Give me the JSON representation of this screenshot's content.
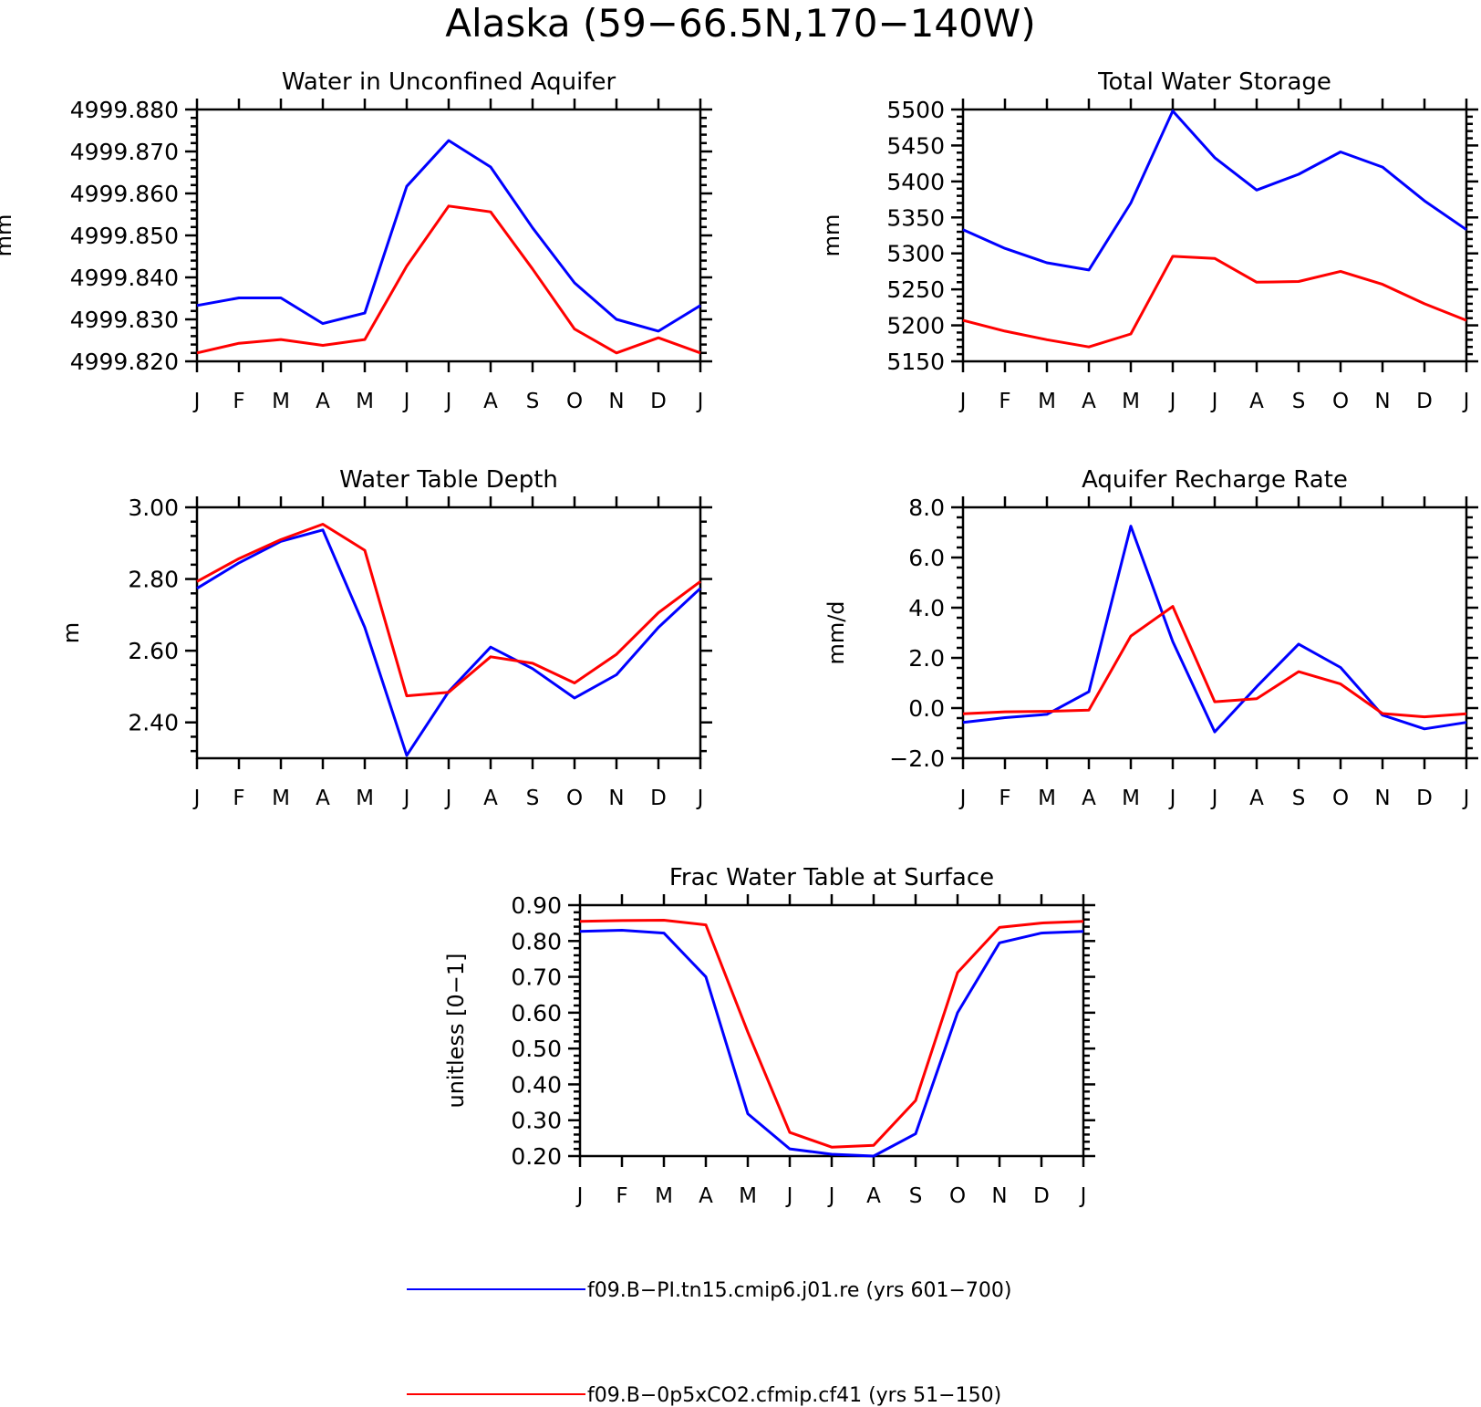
{
  "title": "Alaska (59−66.5N,170−140W)",
  "months": [
    "J",
    "F",
    "M",
    "A",
    "M",
    "J",
    "J",
    "A",
    "S",
    "O",
    "N",
    "D",
    "J"
  ],
  "legend": [
    {
      "label": "f09.B−PI.tn15.cmip6.j01.re (yrs 601−700)",
      "color": "#0000ff"
    },
    {
      "label": "f09.B−0p5xCO2.cfmip.cf41 (yrs 51−150)",
      "color": "#ff0000"
    }
  ],
  "chart_data": [
    {
      "type": "line",
      "title": "Water in Unconfined Aquifer",
      "xlabel": "",
      "ylabel": "mm",
      "ylim": [
        4999.82,
        4999.88
      ],
      "yticks": [
        {
          "value": 4999.82,
          "label": "4999.820"
        },
        {
          "value": 4999.83,
          "label": "4999.830"
        },
        {
          "value": 4999.84,
          "label": "4999.840"
        },
        {
          "value": 4999.85,
          "label": "4999.850"
        },
        {
          "value": 4999.86,
          "label": "4999.860"
        },
        {
          "value": 4999.87,
          "label": "4999.870"
        },
        {
          "value": 4999.88,
          "label": "4999.880"
        }
      ],
      "series": [
        {
          "color": "#0000ff",
          "values": [
            4999.8333,
            4999.8351,
            4999.8351,
            4999.829,
            4999.8315,
            4999.8617,
            4999.8726,
            4999.8663,
            4999.8518,
            4999.8387,
            4999.83,
            4999.8272,
            4999.8333
          ]
        },
        {
          "color": "#ff0000",
          "values": [
            4999.822,
            4999.8243,
            4999.8252,
            4999.8238,
            4999.8252,
            4999.8427,
            4999.857,
            4999.8556,
            4999.842,
            4999.8277,
            4999.822,
            4999.8256,
            4999.822
          ]
        }
      ]
    },
    {
      "type": "line",
      "title": "Total Water Storage",
      "xlabel": "",
      "ylabel": "mm",
      "ylim": [
        5150,
        5500
      ],
      "yticks": [
        {
          "value": 5150,
          "label": "5150"
        },
        {
          "value": 5200,
          "label": "5200"
        },
        {
          "value": 5250,
          "label": "5250"
        },
        {
          "value": 5300,
          "label": "5300"
        },
        {
          "value": 5350,
          "label": "5350"
        },
        {
          "value": 5400,
          "label": "5400"
        },
        {
          "value": 5450,
          "label": "5450"
        },
        {
          "value": 5500,
          "label": "5500"
        }
      ],
      "series": [
        {
          "color": "#0000ff",
          "values": [
            5333,
            5307,
            5287,
            5277,
            5370,
            5498,
            5433,
            5388,
            5410,
            5441,
            5420,
            5373,
            5333
          ]
        },
        {
          "color": "#ff0000",
          "values": [
            5207,
            5192,
            5180,
            5170,
            5188,
            5296,
            5293,
            5260,
            5261,
            5275,
            5257,
            5230,
            5207
          ]
        }
      ]
    },
    {
      "type": "line",
      "title": "Water Table Depth",
      "xlabel": "",
      "ylabel": "m",
      "ylim": [
        2.3,
        3.0
      ],
      "yticks": [
        {
          "value": 2.4,
          "label": "2.40"
        },
        {
          "value": 2.6,
          "label": "2.60"
        },
        {
          "value": 2.8,
          "label": "2.80"
        },
        {
          "value": 3.0,
          "label": "3.00"
        }
      ],
      "series": [
        {
          "color": "#0000ff",
          "values": [
            2.774,
            2.845,
            2.905,
            2.937,
            2.665,
            2.308,
            2.486,
            2.61,
            2.55,
            2.468,
            2.533,
            2.665,
            2.774
          ]
        },
        {
          "color": "#ff0000",
          "values": [
            2.793,
            2.857,
            2.91,
            2.953,
            2.88,
            2.474,
            2.484,
            2.583,
            2.565,
            2.51,
            2.59,
            2.706,
            2.793
          ]
        }
      ]
    },
    {
      "type": "line",
      "title": "Aquifer Recharge Rate",
      "xlabel": "",
      "ylabel": "mm/d",
      "ylim": [
        -2.0,
        8.0
      ],
      "yticks": [
        {
          "value": -2.0,
          "label": "−2.0"
        },
        {
          "value": 0.0,
          "label": "0.0"
        },
        {
          "value": 2.0,
          "label": "2.0"
        },
        {
          "value": 4.0,
          "label": "4.0"
        },
        {
          "value": 6.0,
          "label": "6.0"
        },
        {
          "value": 8.0,
          "label": "8.0"
        }
      ],
      "series": [
        {
          "color": "#0000ff",
          "values": [
            -0.57,
            -0.38,
            -0.25,
            0.65,
            7.25,
            2.65,
            -0.95,
            0.85,
            2.55,
            1.62,
            -0.28,
            -0.83,
            -0.57
          ]
        },
        {
          "color": "#ff0000",
          "values": [
            -0.23,
            -0.15,
            -0.13,
            -0.08,
            2.87,
            4.05,
            0.25,
            0.37,
            1.45,
            0.96,
            -0.22,
            -0.35,
            -0.23
          ]
        }
      ]
    },
    {
      "type": "line",
      "title": "Frac Water Table at Surface",
      "xlabel": "",
      "ylabel": "unitless [0−1]",
      "ylim": [
        0.2,
        0.9
      ],
      "yticks": [
        {
          "value": 0.2,
          "label": "0.20"
        },
        {
          "value": 0.3,
          "label": "0.30"
        },
        {
          "value": 0.4,
          "label": "0.40"
        },
        {
          "value": 0.5,
          "label": "0.50"
        },
        {
          "value": 0.6,
          "label": "0.60"
        },
        {
          "value": 0.7,
          "label": "0.70"
        },
        {
          "value": 0.8,
          "label": "0.80"
        },
        {
          "value": 0.9,
          "label": "0.90"
        }
      ],
      "series": [
        {
          "color": "#0000ff",
          "values": [
            0.827,
            0.83,
            0.822,
            0.7,
            0.318,
            0.22,
            0.205,
            0.2,
            0.262,
            0.6,
            0.795,
            0.822,
            0.827
          ]
        },
        {
          "color": "#ff0000",
          "values": [
            0.855,
            0.857,
            0.858,
            0.845,
            0.546,
            0.266,
            0.225,
            0.23,
            0.355,
            0.712,
            0.838,
            0.85,
            0.855
          ]
        }
      ]
    }
  ]
}
